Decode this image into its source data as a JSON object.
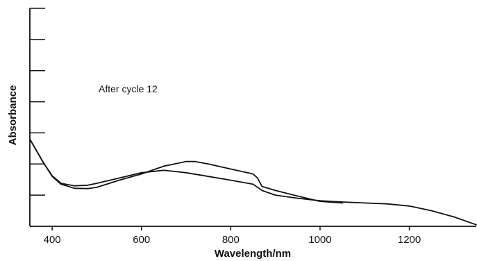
{
  "chart_data": {
    "type": "line",
    "title": "",
    "xlabel": "Wavelength/nm",
    "ylabel": "Absorbance",
    "xlim": [
      350,
      1350
    ],
    "ylim": [
      0,
      7
    ],
    "x_ticks": [
      400,
      600,
      800,
      1000,
      1200
    ],
    "x_tick_labels": [
      "400",
      "600",
      "800",
      "1000",
      "1200"
    ],
    "y_ticks": [
      1,
      2,
      3,
      4,
      5,
      6,
      7
    ],
    "y_tick_labels": [],
    "grid": false,
    "legend": "none",
    "annotations": [
      {
        "text": "After cycle 12",
        "x": 570,
        "y": 4.3
      }
    ],
    "series": [
      {
        "color": "#111111",
        "x": [
          350,
          360,
          380,
          400,
          420,
          450,
          480,
          500,
          550,
          600,
          650,
          700,
          720,
          750,
          800,
          850,
          860,
          870,
          900,
          950,
          1000,
          1050
        ],
        "y": [
          2.8,
          2.55,
          2.05,
          1.6,
          1.35,
          1.22,
          1.21,
          1.25,
          1.48,
          1.68,
          1.93,
          2.08,
          2.08,
          2.0,
          1.84,
          1.68,
          1.55,
          1.28,
          1.15,
          0.97,
          0.8,
          0.75
        ]
      },
      {
        "color": "#111111",
        "x": [
          350,
          360,
          380,
          400,
          420,
          450,
          480,
          500,
          550,
          600,
          650,
          700,
          750,
          800,
          850,
          870,
          900,
          950,
          1000,
          1050,
          1100,
          1150,
          1200,
          1250,
          1300,
          1350
        ],
        "y": [
          2.8,
          2.55,
          2.05,
          1.62,
          1.38,
          1.3,
          1.32,
          1.38,
          1.55,
          1.72,
          1.8,
          1.72,
          1.6,
          1.48,
          1.35,
          1.15,
          1.0,
          0.9,
          0.82,
          0.78,
          0.75,
          0.72,
          0.65,
          0.5,
          0.3,
          0.05
        ]
      }
    ]
  }
}
